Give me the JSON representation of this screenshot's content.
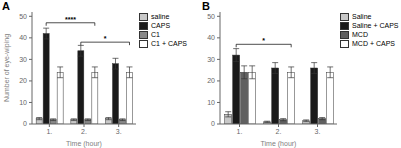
{
  "chart_data": [
    {
      "type": "bar",
      "title": "A",
      "categories": [
        "1.",
        "2.",
        "3."
      ],
      "series": [
        {
          "name": "saline",
          "color": "#c8c8c8",
          "values": [
            2.5,
            2.0,
            2.5
          ],
          "errors": [
            0.5,
            0.4,
            0.5
          ]
        },
        {
          "name": "CAPS",
          "color": "#1a1a1a",
          "values": [
            42,
            34,
            28
          ],
          "errors": [
            2.5,
            2.5,
            2.5
          ]
        },
        {
          "name": "C1",
          "color": "#888888",
          "values": [
            2.0,
            2.0,
            2.0
          ],
          "errors": [
            0.4,
            0.4,
            0.4
          ]
        },
        {
          "name": "C1 + CAPS",
          "color": "#ffffff",
          "values": [
            24,
            24,
            24
          ],
          "errors": [
            2.5,
            2.5,
            2.5
          ]
        }
      ],
      "ylabel": "Number of eye-wiping",
      "xlabel": "Time (hour)",
      "ylim": [
        0,
        52
      ],
      "yticks": [
        0,
        10,
        20,
        30,
        40,
        50
      ],
      "legend": "right",
      "annotations": [
        {
          "text": "****",
          "y": 47,
          "from": {
            "category": "1.",
            "series": "CAPS"
          },
          "to": {
            "category": "2.",
            "series": "C1 + CAPS"
          }
        },
        {
          "text": "*",
          "y": 38,
          "from": {
            "category": "2.",
            "series": "CAPS"
          },
          "to": {
            "category": "3.",
            "series": "C1 + CAPS"
          }
        }
      ]
    },
    {
      "type": "bar",
      "title": "B",
      "categories": [
        "1.",
        "2.",
        "3."
      ],
      "series": [
        {
          "name": "Saline",
          "color": "#c8c8c8",
          "values": [
            4.5,
            1.0,
            1.5
          ],
          "errors": [
            1.2,
            0.3,
            0.4
          ]
        },
        {
          "name": "Saline + CAPS",
          "color": "#1a1a1a",
          "values": [
            32,
            26,
            26
          ],
          "errors": [
            3.0,
            2.5,
            2.5
          ]
        },
        {
          "name": "MCD",
          "color": "#606060",
          "values": [
            24,
            2.0,
            2.5
          ],
          "errors": [
            3.0,
            0.5,
            0.5
          ]
        },
        {
          "name": "MCD + CAPS",
          "color": "#ffffff",
          "values": [
            24,
            24,
            24
          ],
          "errors": [
            3.0,
            2.5,
            2.5
          ]
        }
      ],
      "xlabel": "Time (hour)",
      "ylim": [
        0,
        52
      ],
      "yticks": [
        0,
        10,
        20,
        30,
        40,
        50
      ],
      "legend": "right",
      "annotations": [
        {
          "text": "*",
          "y": 37,
          "from": {
            "category": "1.",
            "series": "Saline + CAPS"
          },
          "to": {
            "category": "2.",
            "series": "MCD + CAPS"
          }
        }
      ]
    }
  ]
}
